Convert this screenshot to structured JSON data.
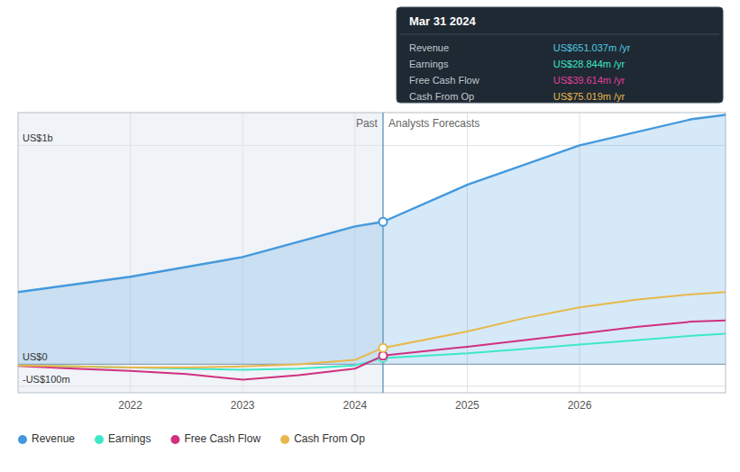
{
  "chart_data": {
    "type": "line",
    "xlim": [
      2021.0,
      2027.3
    ],
    "ylim": [
      -130,
      1150
    ],
    "xticks": [
      2022,
      2023,
      2024,
      2025,
      2026
    ],
    "yticks": [
      {
        "value": -100,
        "label": "-US$100m"
      },
      {
        "value": 0,
        "label": "US$0"
      },
      {
        "value": 1000,
        "label": "US$1b"
      }
    ],
    "grid": true,
    "legend": "bottom",
    "divider_x": 2024.25,
    "annotations": [
      "Past",
      "Analysts Forecasts"
    ],
    "series": [
      {
        "name": "Revenue",
        "color": "#4499dd",
        "type": "area",
        "x": [
          2021.0,
          2022.0,
          2023.0,
          2024.0,
          2024.25,
          2024.25,
          2025.0,
          2026.0,
          2027.0,
          2027.3
        ],
        "values": [
          330,
          400,
          490,
          630,
          651,
          651,
          820,
          1000,
          1120,
          1140
        ]
      },
      {
        "name": "Earnings",
        "color": "#3de8c8",
        "type": "line",
        "x": [
          2021.0,
          2021.5,
          2022.0,
          2022.5,
          2023.0,
          2023.5,
          2024.0,
          2024.25,
          2024.25,
          2025.0,
          2025.5,
          2026.0,
          2026.5,
          2027.0,
          2027.3
        ],
        "values": [
          -5,
          -10,
          -15,
          -20,
          -25,
          -20,
          -5,
          28.844,
          28.844,
          50,
          70,
          90,
          110,
          130,
          140
        ]
      },
      {
        "name": "Free Cash Flow",
        "color": "#d03080",
        "type": "line",
        "x": [
          2021.0,
          2021.5,
          2022.0,
          2022.5,
          2023.0,
          2023.5,
          2024.0,
          2024.25,
          2024.25,
          2025.0,
          2025.5,
          2026.0,
          2026.5,
          2027.0,
          2027.3
        ],
        "values": [
          -8,
          -20,
          -30,
          -45,
          -70,
          -50,
          -20,
          39.614,
          39.614,
          80,
          110,
          140,
          170,
          195,
          200
        ]
      },
      {
        "name": "Cash From Op",
        "color": "#e8b84b",
        "type": "line",
        "x": [
          2021.0,
          2021.5,
          2022.0,
          2022.5,
          2023.0,
          2023.5,
          2024.0,
          2024.25,
          2024.25,
          2025.0,
          2025.5,
          2026.0,
          2026.5,
          2027.0,
          2027.3
        ],
        "values": [
          -5,
          -10,
          -15,
          -15,
          -10,
          0,
          20,
          75.019,
          75.019,
          150,
          210,
          260,
          295,
          320,
          330
        ]
      }
    ],
    "tooltip": {
      "title": "Mar 31 2024",
      "rows": [
        {
          "label": "Revenue",
          "value": "US$651.037m /yr",
          "color": "#4ec9e1"
        },
        {
          "label": "Earnings",
          "value": "US$28.844m /yr",
          "color": "#3de8c8"
        },
        {
          "label": "Free Cash Flow",
          "value": "US$39.614m /yr",
          "color": "#e040a0"
        },
        {
          "label": "Cash From Op",
          "value": "US$75.019m /yr",
          "color": "#e8b84b"
        }
      ]
    }
  }
}
